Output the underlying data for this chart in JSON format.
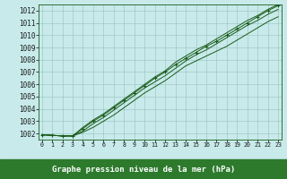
{
  "title": "Graphe pression niveau de la mer (hPa)",
  "background_color": "#c8eaea",
  "plot_bg_color": "#c8eaea",
  "label_bg_color": "#2d7a2d",
  "label_text_color": "#ffffff",
  "grid_color": "#a0c8c8",
  "line_color": "#1a5c1a",
  "ylim": [
    1001.5,
    1012.5
  ],
  "xlim": [
    -0.3,
    23.3
  ],
  "yticks": [
    1002,
    1003,
    1004,
    1005,
    1006,
    1007,
    1008,
    1009,
    1010,
    1011,
    1012
  ],
  "xticks": [
    0,
    1,
    2,
    3,
    4,
    5,
    6,
    7,
    8,
    9,
    10,
    11,
    12,
    13,
    14,
    15,
    16,
    17,
    18,
    19,
    20,
    21,
    22,
    23
  ],
  "series": [
    [
      1001.9,
      1001.85,
      1001.8,
      1001.8,
      1002.1,
      1002.5,
      1003.0,
      1003.5,
      1004.1,
      1004.7,
      1005.3,
      1005.8,
      1006.3,
      1006.9,
      1007.5,
      1007.9,
      1008.3,
      1008.7,
      1009.1,
      1009.6,
      1010.1,
      1010.6,
      1011.1,
      1011.5
    ],
    [
      1001.9,
      1001.85,
      1001.8,
      1001.8,
      1002.2,
      1002.8,
      1003.3,
      1003.9,
      1004.5,
      1005.1,
      1005.7,
      1006.2,
      1006.7,
      1007.3,
      1007.9,
      1008.4,
      1008.8,
      1009.3,
      1009.8,
      1010.3,
      1010.8,
      1011.2,
      1011.7,
      1012.1
    ],
    [
      1001.9,
      1001.85,
      1001.8,
      1001.8,
      1002.4,
      1003.0,
      1003.5,
      1004.1,
      1004.7,
      1005.3,
      1005.9,
      1006.5,
      1007.0,
      1007.6,
      1008.1,
      1008.6,
      1009.1,
      1009.5,
      1010.0,
      1010.5,
      1011.0,
      1011.5,
      1012.0,
      1012.4
    ],
    [
      1001.9,
      1001.85,
      1001.8,
      1001.8,
      1002.5,
      1003.1,
      1003.6,
      1004.2,
      1004.8,
      1005.4,
      1006.0,
      1006.6,
      1007.1,
      1007.8,
      1008.3,
      1008.8,
      1009.2,
      1009.7,
      1010.2,
      1010.7,
      1011.2,
      1011.6,
      1012.1,
      1012.5
    ]
  ],
  "marker_series_idx": 2,
  "ytick_fontsize": 5.5,
  "xtick_fontsize": 4.8,
  "label_fontsize": 6.5
}
